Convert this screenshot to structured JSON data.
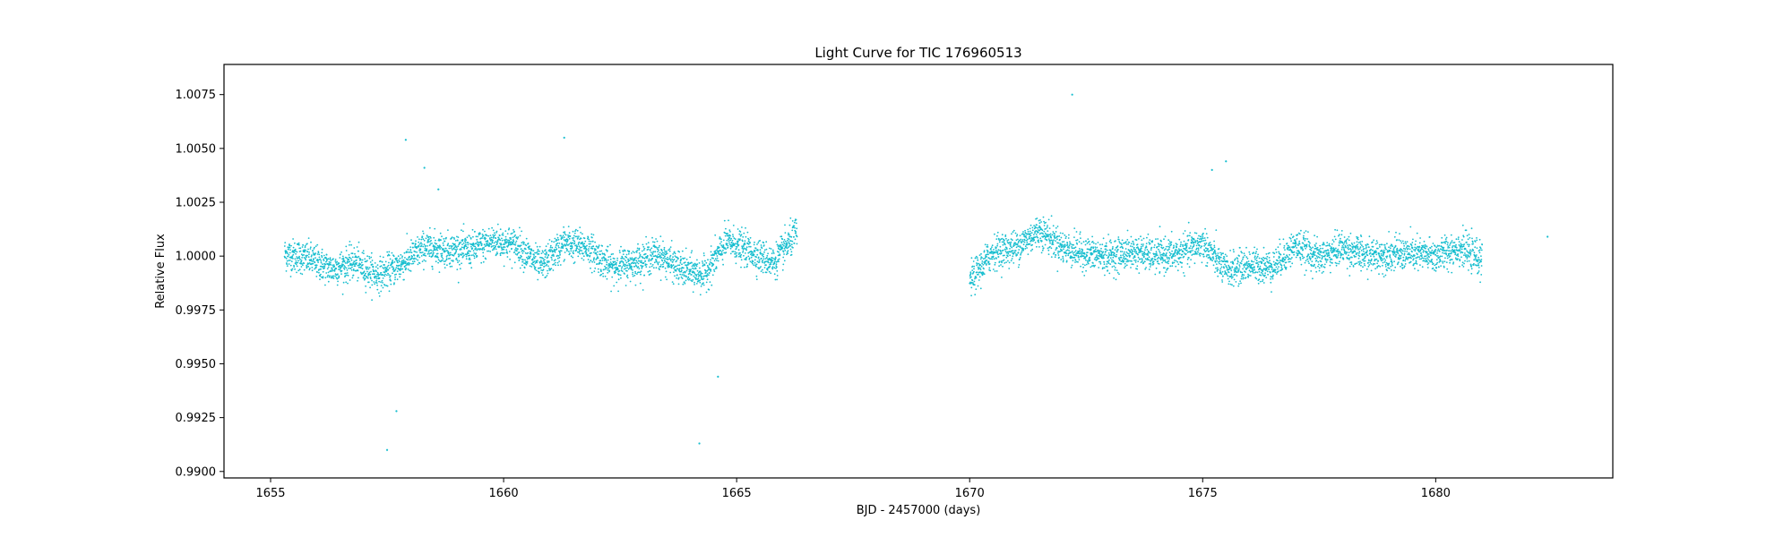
{
  "chart_data": {
    "type": "scatter",
    "title": "Light Curve for TIC 176960513",
    "xlabel": "BJD - 2457000 (days)",
    "ylabel": "Relative Flux",
    "xlim": [
      1654.0,
      1683.8
    ],
    "ylim": [
      0.9897,
      1.0089
    ],
    "xticks": [
      1655,
      1660,
      1665,
      1670,
      1675,
      1680
    ],
    "xtick_labels": [
      "1655",
      "1660",
      "1665",
      "1670",
      "1675",
      "1680"
    ],
    "yticks": [
      0.99,
      0.9925,
      0.995,
      0.9975,
      1.0,
      1.0025,
      1.005,
      1.0075
    ],
    "ytick_labels": [
      "0.9900",
      "0.9925",
      "0.9950",
      "0.9975",
      "1.0000",
      "1.0025",
      "1.0050",
      "1.0075"
    ],
    "grid": false,
    "marker_color": "#17becf",
    "series": [
      {
        "segments": [
          {
            "x": [
              1655.3,
              1655.8,
              1656.3,
              1656.8,
              1657.3,
              1657.8,
              1658.3,
              1658.8,
              1659.3,
              1659.8,
              1660.3,
              1660.8,
              1661.3,
              1661.8,
              1662.3,
              1662.8,
              1663.3,
              1663.8,
              1664.3,
              1664.8,
              1665.3,
              1665.8,
              1666.3
            ],
            "y": [
              1.0001,
              0.9999,
              0.9994,
              0.9997,
              0.9991,
              0.9996,
              1.0004,
              1.0003,
              1.0003,
              1.0007,
              1.0005,
              0.9995,
              1.0006,
              1.0004,
              0.9995,
              0.9997,
              1.0001,
              0.9994,
              0.9991,
              1.0007,
              1.0002,
              0.9997,
              1.0011
            ]
          },
          {
            "x": [
              1670.0,
              1670.5,
              1671.0,
              1671.5,
              1672.0,
              1672.5,
              1673.0,
              1673.5,
              1674.0,
              1674.5,
              1675.0,
              1675.5,
              1676.0,
              1676.5,
              1677.0,
              1677.5,
              1678.0,
              1678.5,
              1679.0,
              1679.5,
              1680.0,
              1680.5,
              1681.0
            ],
            "y": [
              0.9988,
              1.0002,
              1.0004,
              1.0012,
              1.0004,
              1.0001,
              1.0,
              1.0002,
              1.0,
              1.0001,
              1.0006,
              0.9993,
              0.9996,
              0.9995,
              1.0005,
              0.9999,
              1.0004,
              1.0,
              1.0001,
              1.0001,
              1.0,
              1.0004,
              0.9998
            ]
          }
        ],
        "outliers": [
          {
            "x": 1657.5,
            "y": 0.991
          },
          {
            "x": 1657.7,
            "y": 0.9928
          },
          {
            "x": 1657.9,
            "y": 1.0054
          },
          {
            "x": 1658.3,
            "y": 1.0041
          },
          {
            "x": 1658.6,
            "y": 1.0031
          },
          {
            "x": 1661.3,
            "y": 1.0055
          },
          {
            "x": 1664.2,
            "y": 0.9913
          },
          {
            "x": 1664.6,
            "y": 0.9944
          },
          {
            "x": 1672.2,
            "y": 1.0075
          },
          {
            "x": 1675.2,
            "y": 1.004
          },
          {
            "x": 1675.5,
            "y": 1.0044
          },
          {
            "x": 1682.4,
            "y": 1.0009
          }
        ]
      }
    ]
  }
}
